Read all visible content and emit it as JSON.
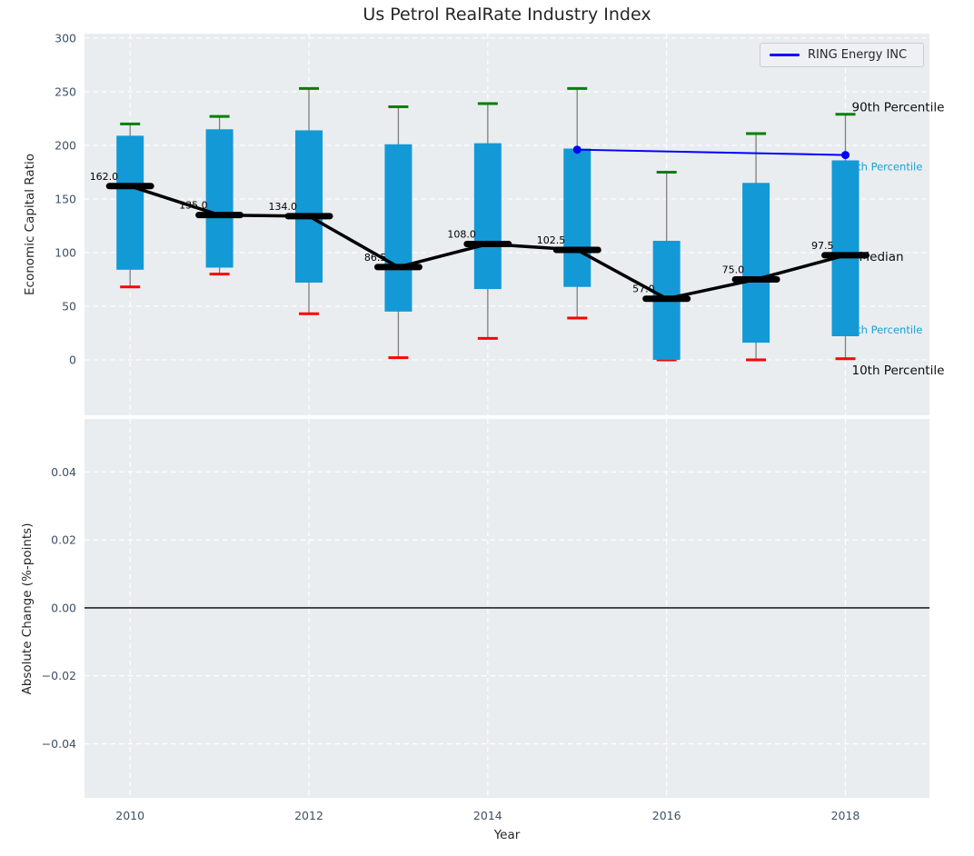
{
  "title": "Us Petrol RealRate Industry Index",
  "legend": {
    "label": "RING Energy INC"
  },
  "axes": {
    "top_ylabel": "Economic Capital Ratio",
    "bottom_ylabel": "Absolute Change (%-points)",
    "xlabel": "Year"
  },
  "colors": {
    "bar": "#1399d6",
    "p90_cap": "#008000",
    "p10_cap": "#ff0000",
    "whisker": "#7f7f7f",
    "median": "#000000",
    "overlay_line": "#0000ff",
    "plot_bg": "#e9edf0",
    "grid": "#ffffff",
    "tick_text": "#3d5166",
    "label_text": "#262626",
    "percentile_text": "#1b9fd4"
  },
  "chart_data": [
    {
      "type": "bar",
      "subtype": "percentile-range-candles-with-median-line",
      "title": "Us Petrol RealRate Industry Index",
      "ylabel": "Economic Capital Ratio",
      "x": [
        2010,
        2011,
        2012,
        2013,
        2014,
        2015,
        2016,
        2017,
        2018
      ],
      "series": [
        {
          "name": "90th Percentile",
          "values": [
            220,
            227,
            253,
            236,
            239,
            253,
            175,
            211,
            229
          ]
        },
        {
          "name": "75th Percentile",
          "values": [
            209,
            215,
            214,
            201,
            202,
            197,
            111,
            165,
            186
          ]
        },
        {
          "name": "Median",
          "values": [
            162,
            135,
            134,
            86.5,
            108,
            102.5,
            57,
            75,
            97.5
          ]
        },
        {
          "name": "25th Percentile",
          "values": [
            84,
            86,
            72,
            45,
            66,
            68,
            0,
            16,
            22
          ]
        },
        {
          "name": "10th Percentile",
          "values": [
            68,
            80,
            43,
            2,
            20,
            39,
            0,
            0,
            1
          ]
        }
      ],
      "median_labels": [
        "162.0",
        "135.0",
        "134.0",
        "86.5",
        "108.0",
        "102.5",
        "57.0",
        "75.0",
        "97.5"
      ],
      "overlay_line": {
        "name": "RING Energy INC",
        "x": [
          2015,
          2018
        ],
        "y": [
          196,
          191
        ]
      },
      "annotations": [
        {
          "text": "90th Percentile",
          "y": 236,
          "style": "black",
          "dx": 7,
          "size": 13.5,
          "behind_bars": false
        },
        {
          "text": "75th Percentile",
          "y": 180,
          "style": "percentile",
          "dx": -2,
          "size": 11.5,
          "behind_bars": true
        },
        {
          "text": "Median",
          "y": 96.5,
          "style": "black",
          "dx": 15,
          "size": 13.5,
          "behind_bars": false
        },
        {
          "text": "25th Percentile",
          "y": 28,
          "style": "percentile",
          "dx": -2,
          "size": 11.5,
          "behind_bars": true
        },
        {
          "text": "10th Percentile",
          "y": -9.5,
          "style": "black",
          "dx": 7,
          "size": 13.5,
          "behind_bars": false
        }
      ],
      "ylim": [
        -51.7,
        304.2
      ],
      "yticks": [
        0,
        50,
        100,
        150,
        200,
        250,
        300
      ],
      "xlim": [
        2009.49,
        2018.94
      ],
      "grid_x": [
        2010,
        2012,
        2014,
        2016,
        2018
      ],
      "legend_position": "upper right",
      "grid": true
    },
    {
      "type": "line",
      "ylabel": "Absolute Change (%-points)",
      "xlabel": "Year",
      "series": [],
      "zero_line": 0.0,
      "ylim": [
        -0.0559,
        0.0556
      ],
      "yticks": [
        0.04,
        0.02,
        0.0,
        -0.02,
        -0.04
      ],
      "ytick_labels": [
        "0.04",
        "0.02",
        "0.00",
        "−0.02",
        "−0.04"
      ],
      "xlim": [
        2009.49,
        2018.94
      ],
      "xticks": [
        2010,
        2012,
        2014,
        2016,
        2018
      ],
      "xtick_labels": [
        "2010",
        "2012",
        "2014",
        "2016",
        "2018"
      ],
      "grid_x": [
        2010,
        2012,
        2014,
        2016,
        2018
      ],
      "grid": true
    }
  ]
}
